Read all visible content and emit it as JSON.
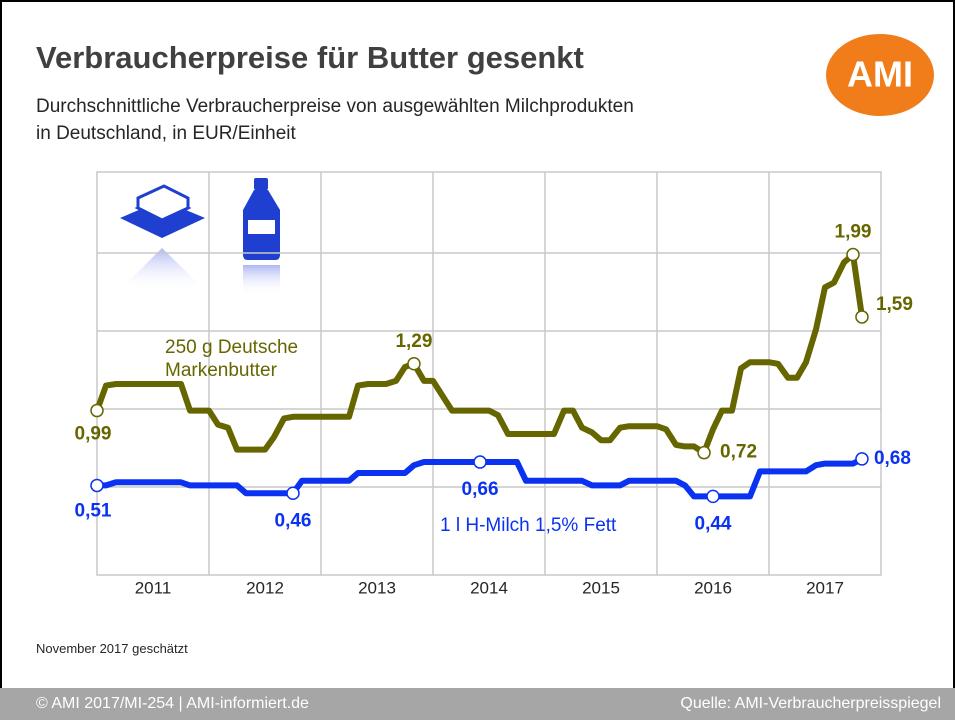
{
  "title": "Verbraucherpreise für Butter gesenkt",
  "subtitle": [
    "Durchschnittliche Verbraucherpreise von ausgewählten Milchprodukten",
    "in Deutschland, in EUR/Einheit"
  ],
  "logo": "AMI",
  "note": "November 2017 geschätzt",
  "footer": {
    "left": "© AMI 2017/MI-254 | AMI-informiert.de",
    "right": "Quelle: AMI-Verbraucherpreisspiegel"
  },
  "chart_data": {
    "type": "line",
    "x": [
      2011,
      2011.08,
      2011.17,
      2011.25,
      2011.33,
      2011.42,
      2011.5,
      2011.58,
      2011.67,
      2011.75,
      2011.83,
      2011.92,
      2012,
      2012.08,
      2012.17,
      2012.25,
      2012.33,
      2012.42,
      2012.5,
      2012.58,
      2012.67,
      2012.75,
      2012.83,
      2012.92,
      2013,
      2013.08,
      2013.17,
      2013.25,
      2013.33,
      2013.42,
      2013.5,
      2013.58,
      2013.67,
      2013.75,
      2013.83,
      2013.92,
      2014,
      2014.08,
      2014.17,
      2014.25,
      2014.33,
      2014.42,
      2014.5,
      2014.58,
      2014.67,
      2014.75,
      2014.83,
      2014.92,
      2015,
      2015.08,
      2015.17,
      2015.25,
      2015.33,
      2015.42,
      2015.5,
      2015.58,
      2015.67,
      2015.75,
      2015.83,
      2015.92,
      2016,
      2016.08,
      2016.17,
      2016.25,
      2016.33,
      2016.42,
      2016.5,
      2016.58,
      2016.67,
      2016.75,
      2016.83,
      2016.92,
      2017,
      2017.08,
      2017.17,
      2017.25,
      2017.33,
      2017.42,
      2017.5,
      2017.58,
      2017.67,
      2017.75,
      2017.83
    ],
    "xlim": [
      2011,
      2018
    ],
    "xticks": [
      {
        "value": 2011.5,
        "label": "2011"
      },
      {
        "value": 2012.5,
        "label": "2012"
      },
      {
        "value": 2013.5,
        "label": "2013"
      },
      {
        "value": 2014.5,
        "label": "2014"
      },
      {
        "value": 2015.5,
        "label": "2015"
      },
      {
        "value": 2016.5,
        "label": "2016"
      },
      {
        "value": 2017.5,
        "label": "2017"
      }
    ],
    "ylim": [
      0,
      2.5
    ],
    "yticks": [
      0.5,
      1,
      1.5,
      2
    ],
    "grid": true,
    "series": [
      {
        "name": "250 g Deutsche Markenbutter",
        "color": "#666600",
        "values": [
          0.99,
          1.15,
          1.16,
          1.16,
          1.16,
          1.16,
          1.16,
          1.16,
          1.16,
          1.16,
          0.99,
          0.99,
          0.99,
          0.9,
          0.88,
          0.74,
          0.74,
          0.74,
          0.74,
          0.82,
          0.94,
          0.95,
          0.95,
          0.95,
          0.95,
          0.95,
          0.95,
          0.95,
          1.15,
          1.16,
          1.16,
          1.16,
          1.18,
          1.27,
          1.29,
          1.18,
          1.18,
          1.09,
          0.99,
          0.99,
          0.99,
          0.99,
          0.99,
          0.96,
          0.84,
          0.84,
          0.84,
          0.84,
          0.84,
          0.84,
          0.99,
          0.99,
          0.88,
          0.85,
          0.8,
          0.8,
          0.88,
          0.89,
          0.89,
          0.89,
          0.89,
          0.87,
          0.77,
          0.76,
          0.76,
          0.72,
          0.87,
          0.99,
          0.99,
          1.26,
          1.3,
          1.3,
          1.3,
          1.29,
          1.2,
          1.2,
          1.3,
          1.51,
          1.78,
          1.81,
          1.94,
          1.99,
          1.59
        ],
        "value_labels": [
          "0,99",
          null,
          null,
          null,
          null,
          null,
          null,
          null,
          null,
          null,
          null,
          null,
          null,
          null,
          null,
          null,
          null,
          null,
          null,
          null,
          null,
          null,
          null,
          null,
          null,
          null,
          null,
          null,
          null,
          null,
          null,
          null,
          null,
          null,
          "1,29",
          null,
          null,
          null,
          null,
          null,
          null,
          null,
          null,
          null,
          null,
          null,
          null,
          null,
          null,
          null,
          null,
          null,
          null,
          null,
          null,
          null,
          null,
          null,
          null,
          null,
          null,
          null,
          null,
          null,
          null,
          "0,72",
          null,
          null,
          null,
          null,
          null,
          null,
          null,
          null,
          null,
          null,
          null,
          null,
          null,
          null,
          null,
          "1,99",
          "1,59"
        ]
      },
      {
        "name": "1 l H-Milch 1,5% Fett",
        "color": "#0a32f0",
        "values": [
          0.51,
          0.51,
          0.53,
          0.53,
          0.53,
          0.53,
          0.53,
          0.53,
          0.53,
          0.53,
          0.51,
          0.51,
          0.51,
          0.51,
          0.51,
          0.51,
          0.46,
          0.46,
          0.46,
          0.46,
          0.46,
          0.46,
          0.54,
          0.54,
          0.54,
          0.54,
          0.54,
          0.54,
          0.59,
          0.59,
          0.59,
          0.59,
          0.59,
          0.59,
          0.64,
          0.66,
          0.66,
          0.66,
          0.66,
          0.66,
          0.66,
          0.66,
          0.66,
          0.66,
          0.66,
          0.66,
          0.54,
          0.54,
          0.54,
          0.54,
          0.54,
          0.54,
          0.54,
          0.51,
          0.51,
          0.51,
          0.51,
          0.54,
          0.54,
          0.54,
          0.54,
          0.54,
          0.54,
          0.51,
          0.44,
          0.44,
          0.44,
          0.44,
          0.44,
          0.44,
          0.44,
          0.6,
          0.6,
          0.6,
          0.6,
          0.6,
          0.6,
          0.64,
          0.65,
          0.65,
          0.65,
          0.65,
          0.68
        ],
        "value_labels": [
          "0,51",
          null,
          null,
          null,
          null,
          null,
          null,
          null,
          null,
          null,
          null,
          null,
          null,
          null,
          null,
          null,
          null,
          null,
          null,
          null,
          null,
          "0,46",
          null,
          null,
          null,
          null,
          null,
          null,
          null,
          null,
          null,
          null,
          null,
          null,
          null,
          null,
          null,
          null,
          null,
          null,
          null,
          "0,66",
          null,
          null,
          null,
          null,
          null,
          null,
          null,
          null,
          null,
          null,
          null,
          null,
          null,
          null,
          null,
          null,
          null,
          null,
          null,
          null,
          null,
          null,
          null,
          null,
          "0,44",
          null,
          null,
          null,
          null,
          null,
          null,
          null,
          null,
          null,
          null,
          null,
          null,
          null,
          null,
          null,
          "0,68"
        ]
      }
    ]
  }
}
